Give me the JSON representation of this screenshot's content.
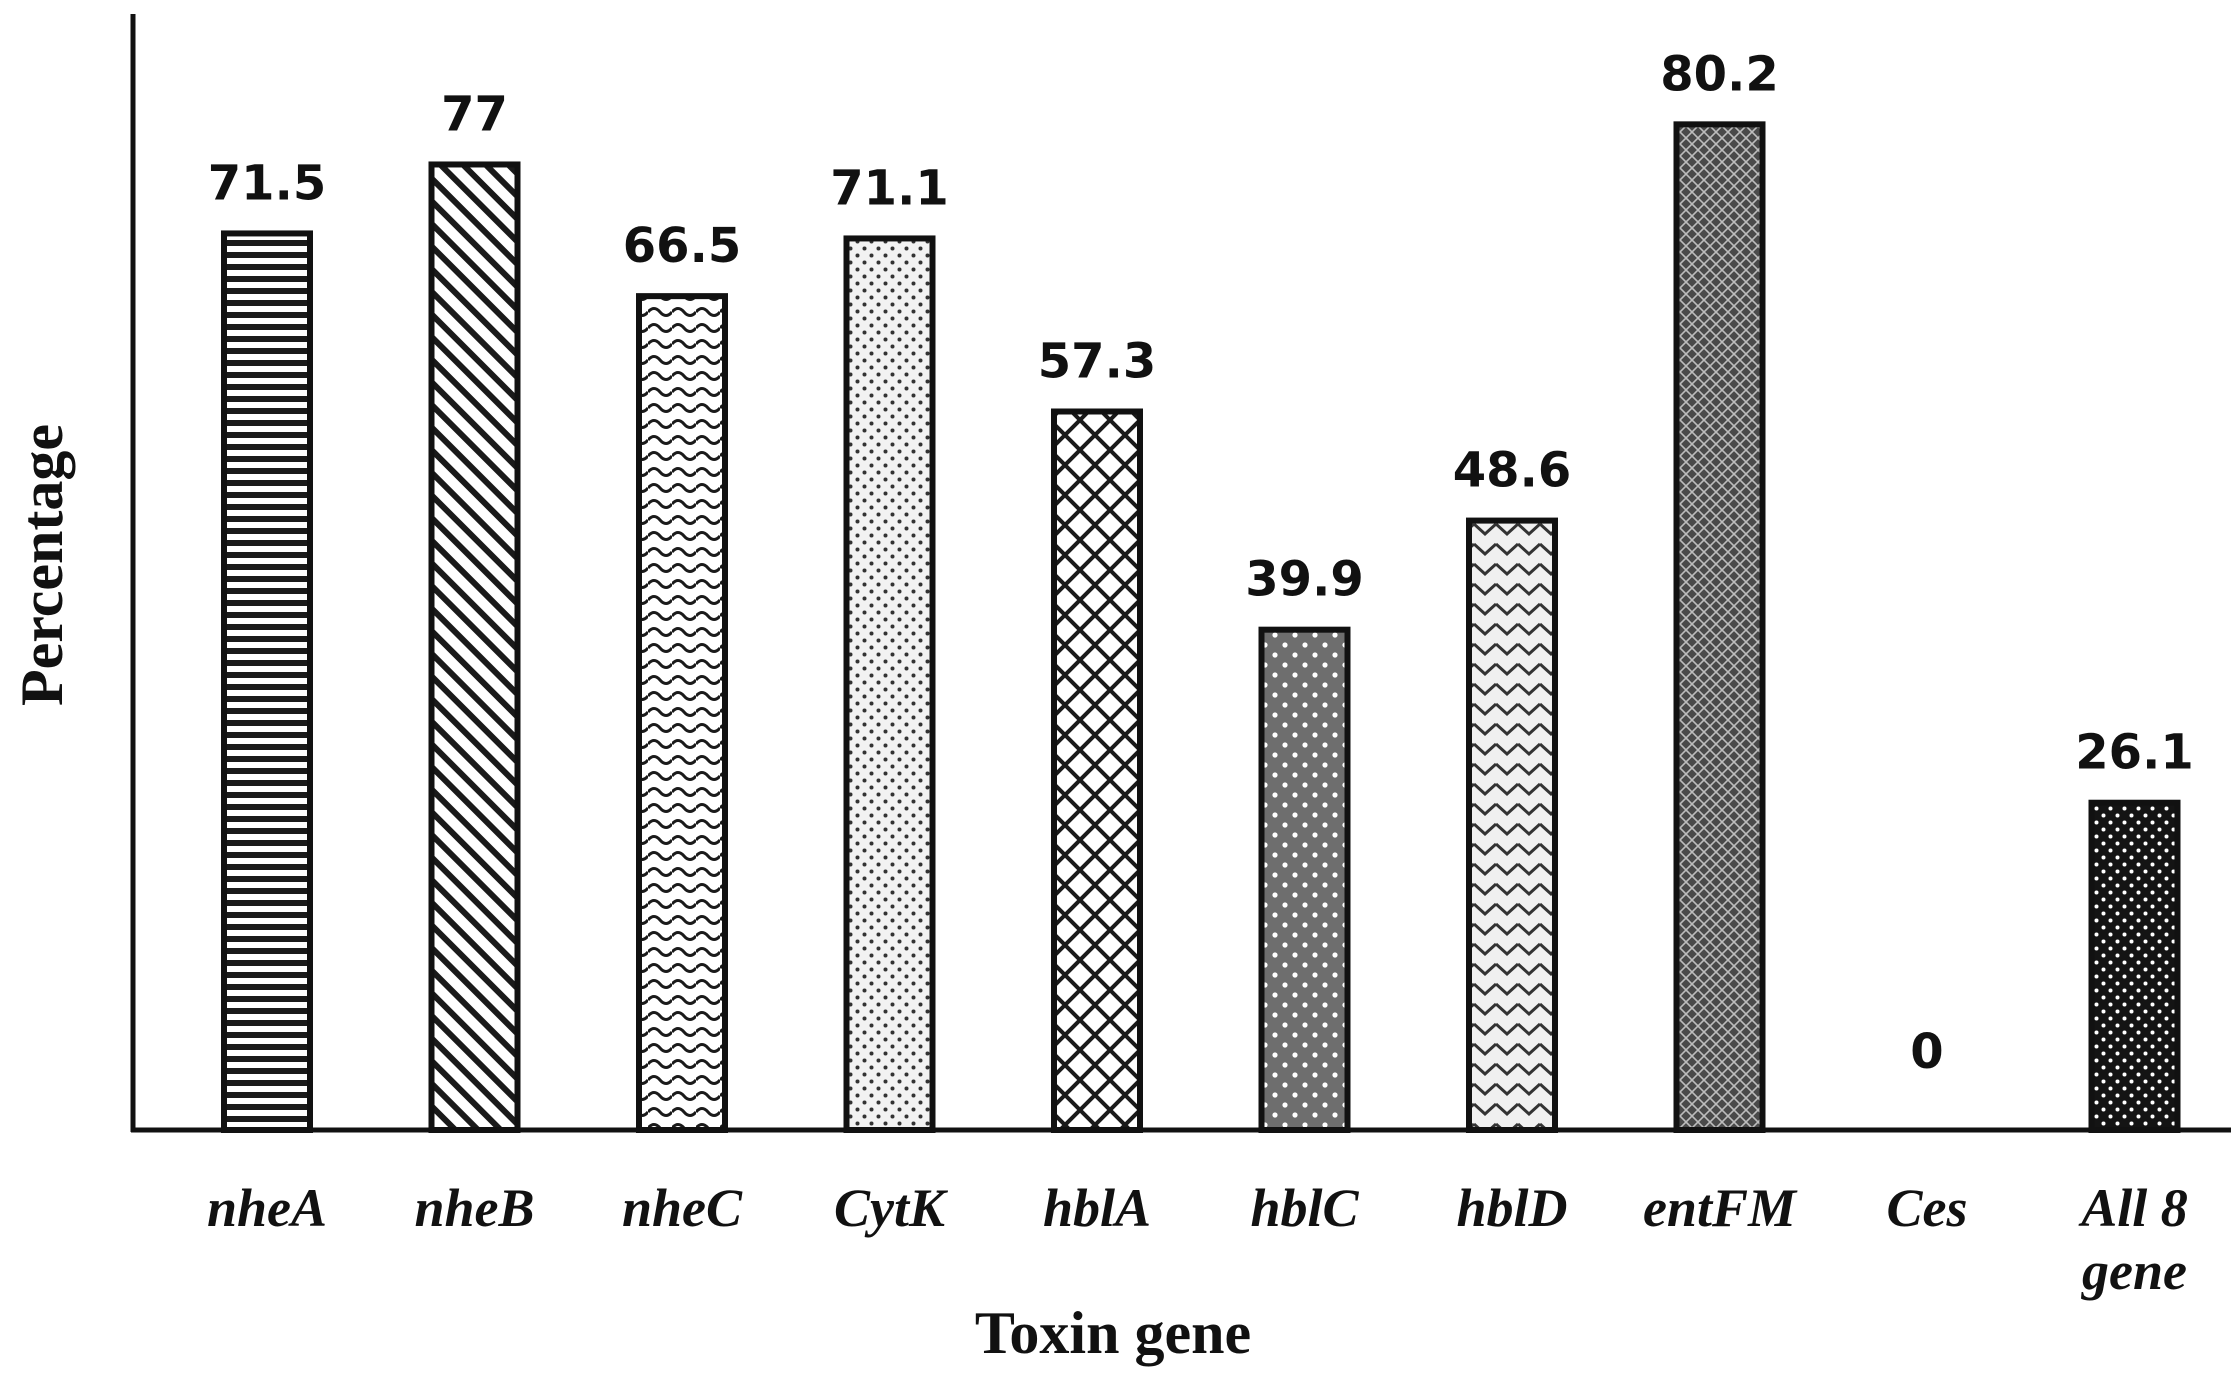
{
  "chart_data": {
    "type": "bar",
    "categories": [
      "nheA",
      "nheB",
      "nheC",
      "CytK",
      "hblA",
      "hblC",
      "hblD",
      "entFM",
      "Ces",
      "All 8 gene"
    ],
    "category_lines": [
      [
        "nheA"
      ],
      [
        "nheB"
      ],
      [
        "nheC"
      ],
      [
        "CytK"
      ],
      [
        "hblA"
      ],
      [
        "hblC"
      ],
      [
        "hblD"
      ],
      [
        "entFM"
      ],
      [
        "Ces"
      ],
      [
        "All 8",
        "gene"
      ]
    ],
    "values": [
      71.5,
      77,
      66.5,
      71.1,
      57.3,
      39.9,
      48.6,
      80.2,
      0,
      26.1
    ],
    "value_labels": [
      "71.5",
      "77",
      "66.5",
      "71.1",
      "57.3",
      "39.9",
      "48.6",
      "80.2",
      "0",
      "26.1"
    ],
    "patterns": [
      "horizontal-lines",
      "diagonal-lines",
      "waves",
      "fine-dots",
      "cross-hatch",
      "dark-dots",
      "chevron",
      "dark-crosshatch",
      "none",
      "black-dots"
    ],
    "xlabel": "Toxin gene",
    "ylabel": "Percentage",
    "ylim": [
      0,
      89
    ],
    "grid": false,
    "legend": "none"
  }
}
